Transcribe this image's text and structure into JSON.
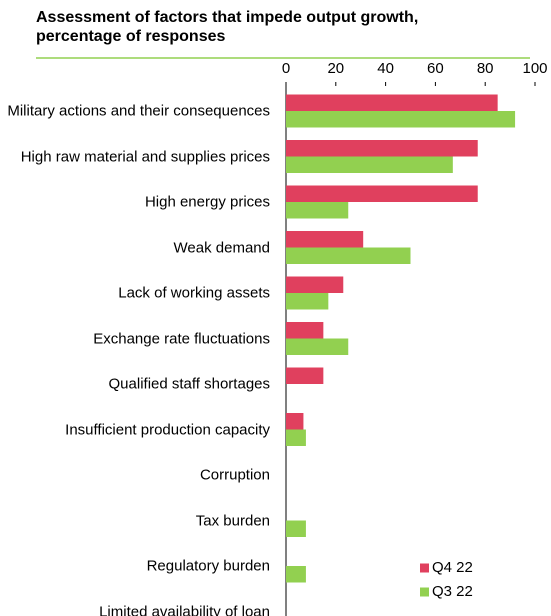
{
  "chart_data": {
    "type": "hbar",
    "title": "Assessment of factors that impede output growth, percentage of responses",
    "categories": [
      "Military actions and their consequences",
      "High raw material and supplies prices",
      "High energy prices",
      "Weak demand",
      "Lack of working assets",
      "Exchange rate fluctuations",
      "Qualified staff shortages",
      "Insufficient production capacity",
      "Corruption",
      "Tax burden",
      "Regulatory burden",
      "Limited availability of loan"
    ],
    "series": [
      {
        "name": "Q4 22",
        "color": "#e0405e",
        "values": [
          85,
          77,
          77,
          31,
          23,
          15,
          15,
          7,
          0,
          0,
          0,
          null
        ]
      },
      {
        "name": "Q3 22",
        "color": "#92d050",
        "values": [
          92,
          67,
          25,
          50,
          17,
          25,
          0,
          8,
          0,
          8,
          8,
          null
        ]
      }
    ],
    "xlim": [
      0,
      100
    ],
    "xticks": [
      0,
      20,
      40,
      60,
      80,
      100
    ],
    "grid": false,
    "legend": "lower right"
  }
}
